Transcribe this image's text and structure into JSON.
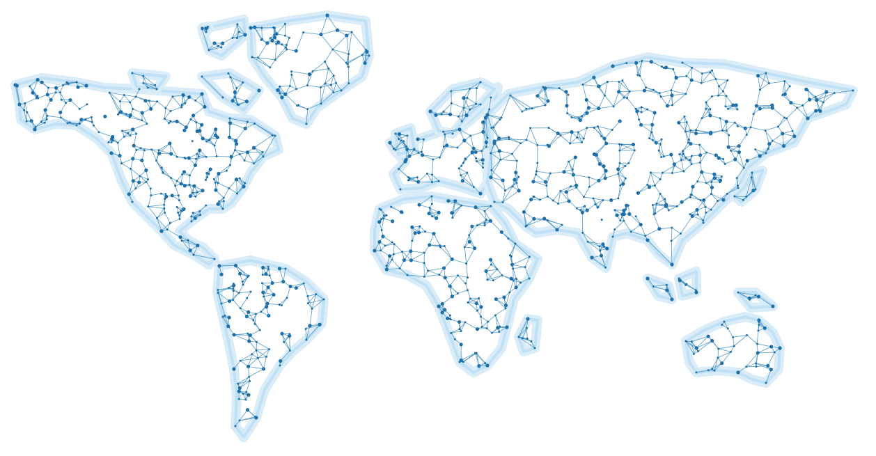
{
  "map": {
    "style": "network-mesh-world-map",
    "colors": {
      "background": "#ffffff",
      "land_glow": "#d9ecf8",
      "land_outline": "#bfe0f5",
      "mesh_line": "#4a94c4",
      "mesh_node": "#1f6fa8"
    },
    "regions": [
      "north-america",
      "greenland",
      "arctic-islands",
      "south-america",
      "europe",
      "africa",
      "madagascar",
      "asia",
      "japan",
      "southeast-asia-islands",
      "australia",
      "new-guinea",
      "iceland",
      "british-isles"
    ]
  }
}
